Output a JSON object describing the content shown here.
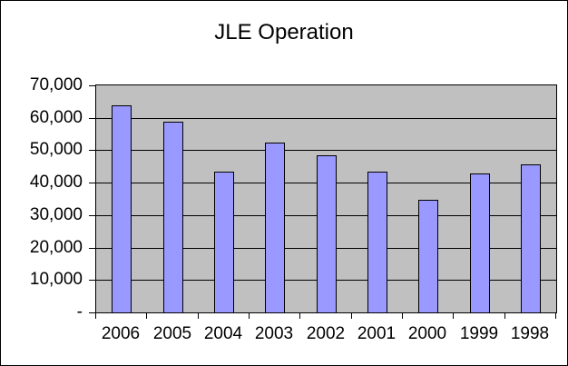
{
  "chart_data": {
    "type": "bar",
    "title": "JLE Operation",
    "categories": [
      "2006",
      "2005",
      "2004",
      "2003",
      "2002",
      "2001",
      "2000",
      "1999",
      "1998"
    ],
    "values": [
      63700,
      58800,
      43400,
      52300,
      48400,
      43400,
      34800,
      42900,
      45600
    ],
    "xlabel": "",
    "ylabel": "",
    "ylim": [
      0,
      70000
    ],
    "ytick_step": 10000,
    "ytick_labels": [
      "-",
      "10,000",
      "20,000",
      "30,000",
      "40,000",
      "50,000",
      "60,000",
      "70,000"
    ],
    "grid": true,
    "legend": false,
    "colors": {
      "bar_fill": "#9999FF",
      "bar_border": "#000000",
      "plot_bg": "#C0C0C0",
      "gridline": "#000000",
      "chart_bg": "#FFFFFF",
      "chart_border": "#000000",
      "text": "#000000"
    }
  }
}
